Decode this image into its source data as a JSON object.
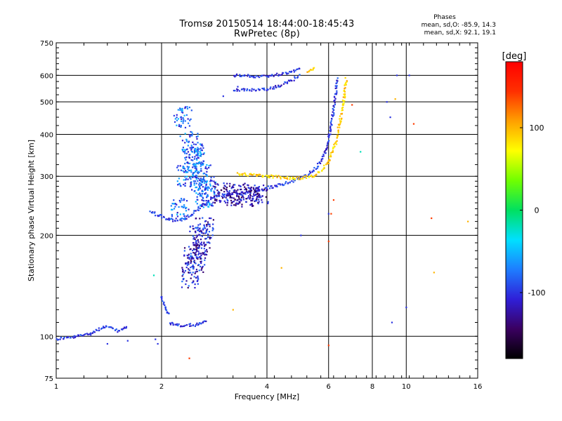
{
  "header": {
    "title_line1": "Tromsø 20150514 18:44:00-18:45:43",
    "title_line2": "RwPretec (8p)"
  },
  "phases": {
    "heading": "Phases",
    "o_stats": "mean, sd,O: -85.9, 14.3",
    "x_stats": "mean, sd,X: 92.1, 19.1"
  },
  "chart_data": {
    "type": "scatter",
    "title": "Tromsø 20150514 18:44:00-18:45:43",
    "subtitle": "RwPretec (8p)",
    "xlabel": "Frequency [MHz]",
    "ylabel": "Stationary phase Virtual Height [km]",
    "x_scale": "log",
    "y_scale": "log",
    "xlim": [
      1,
      16
    ],
    "ylim": [
      75,
      750
    ],
    "x_ticks": [
      1,
      2,
      4,
      6,
      8,
      10,
      16
    ],
    "y_ticks": [
      75,
      100,
      200,
      300,
      400,
      500,
      600,
      750
    ],
    "grid": true,
    "colorbar": {
      "label": "[deg]",
      "range": [
        -180,
        180
      ],
      "ticks": [
        100,
        0,
        -100
      ],
      "colors": [
        "#000000",
        "#3a0060",
        "#2f1fd8",
        "#1e7dff",
        "#00e0ff",
        "#00e060",
        "#70ff00",
        "#ffff00",
        "#ffa000",
        "#ff3000",
        "#ff0000"
      ]
    },
    "series": [
      {
        "mode": "curve",
        "phase": -100,
        "points": [
          [
            1.0,
            98
          ],
          [
            1.05,
            99
          ],
          [
            1.1,
            99
          ],
          [
            1.15,
            100
          ],
          [
            1.2,
            101
          ],
          [
            1.25,
            102
          ],
          [
            1.3,
            104
          ],
          [
            1.35,
            106
          ],
          [
            1.4,
            107
          ],
          [
            1.45,
            105
          ],
          [
            1.5,
            104
          ],
          [
            1.55,
            105
          ],
          [
            1.6,
            107
          ]
        ]
      },
      {
        "mode": "curve",
        "phase": -100,
        "points": [
          [
            1.85,
            235
          ],
          [
            1.95,
            230
          ],
          [
            2.05,
            225
          ],
          [
            2.15,
            222
          ],
          [
            2.25,
            222
          ],
          [
            2.35,
            225
          ],
          [
            2.45,
            232
          ],
          [
            2.55,
            240
          ],
          [
            2.7,
            252
          ],
          [
            2.9,
            262
          ],
          [
            3.1,
            266
          ],
          [
            3.4,
            268
          ],
          [
            3.8,
            272
          ],
          [
            4.2,
            280
          ],
          [
            4.7,
            290
          ],
          [
            5.1,
            298
          ]
        ]
      },
      {
        "mode": "curve",
        "phase": -100,
        "points": [
          [
            5.1,
            300
          ],
          [
            5.4,
            310
          ],
          [
            5.7,
            330
          ],
          [
            5.9,
            360
          ],
          [
            6.05,
            400
          ],
          [
            6.15,
            450
          ],
          [
            6.25,
            500
          ],
          [
            6.3,
            550
          ],
          [
            6.35,
            590
          ]
        ]
      },
      {
        "mode": "curve",
        "phase": -100,
        "points": [
          [
            3.2,
            600
          ],
          [
            3.5,
            597
          ],
          [
            3.8,
            596
          ],
          [
            4.1,
            598
          ],
          [
            4.4,
            606
          ],
          [
            4.7,
            616
          ],
          [
            5.0,
            630
          ]
        ]
      },
      {
        "mode": "curve",
        "phase": -100,
        "points": [
          [
            3.2,
            545
          ],
          [
            3.5,
            542
          ],
          [
            3.8,
            542
          ],
          [
            4.1,
            548
          ],
          [
            4.4,
            560
          ],
          [
            4.7,
            580
          ],
          [
            5.0,
            602
          ]
        ]
      },
      {
        "mode": "curve",
        "phase": -100,
        "points": [
          [
            2.1,
            110
          ],
          [
            2.2,
            108
          ],
          [
            2.3,
            108
          ],
          [
            2.4,
            108
          ],
          [
            2.5,
            108
          ],
          [
            2.6,
            110
          ],
          [
            2.7,
            112
          ]
        ]
      },
      {
        "mode": "curve",
        "phase": -95,
        "points": [
          [
            2.0,
            132
          ],
          [
            2.03,
            125
          ],
          [
            2.06,
            120
          ],
          [
            2.09,
            117
          ],
          [
            2.12,
            116
          ]
        ]
      },
      {
        "mode": "curve",
        "phase": 90,
        "points": [
          [
            3.3,
            305
          ],
          [
            3.6,
            303
          ],
          [
            3.9,
            301
          ],
          [
            4.2,
            299
          ],
          [
            4.5,
            297
          ],
          [
            4.8,
            296
          ],
          [
            5.1,
            297
          ],
          [
            5.4,
            300
          ],
          [
            5.7,
            312
          ],
          [
            6.0,
            330
          ],
          [
            6.3,
            380
          ],
          [
            6.5,
            450
          ],
          [
            6.65,
            520
          ],
          [
            6.75,
            590
          ]
        ]
      },
      {
        "mode": "curve",
        "phase": 95,
        "points": [
          [
            5.2,
            615
          ],
          [
            5.35,
            625
          ],
          [
            5.5,
            636
          ]
        ]
      },
      {
        "mode": "cluster",
        "phase": -80,
        "points": [
          [
            2.25,
            240
          ],
          [
            2.35,
            300
          ],
          [
            2.45,
            330
          ],
          [
            2.55,
            290
          ],
          [
            2.65,
            260
          ],
          [
            2.4,
            380
          ],
          [
            2.3,
            450
          ],
          [
            2.5,
            350
          ],
          [
            2.6,
            310
          ],
          [
            2.7,
            280
          ]
        ]
      },
      {
        "mode": "cluster",
        "phase": -110,
        "points": [
          [
            2.4,
            150
          ],
          [
            2.45,
            175
          ],
          [
            2.55,
            200
          ],
          [
            2.6,
            180
          ],
          [
            2.65,
            210
          ],
          [
            2.5,
            165
          ]
        ]
      },
      {
        "mode": "cluster",
        "phase": -120,
        "points": [
          [
            3.0,
            268
          ],
          [
            3.2,
            262
          ],
          [
            3.4,
            266
          ],
          [
            3.6,
            260
          ],
          [
            3.8,
            266
          ]
        ]
      },
      {
        "mode": "scatter",
        "phase": -100,
        "points": [
          [
            1.4,
            95
          ],
          [
            1.6,
            97
          ],
          [
            1.92,
            98
          ],
          [
            1.95,
            95
          ],
          [
            3.0,
            520
          ],
          [
            3.3,
            555
          ],
          [
            5.0,
            200
          ],
          [
            6.0,
            232
          ],
          [
            8.8,
            500
          ],
          [
            9.0,
            450
          ],
          [
            9.1,
            110
          ],
          [
            9.4,
            600
          ],
          [
            10.0,
            122
          ],
          [
            10.2,
            600
          ]
        ]
      },
      {
        "mode": "scatter",
        "phase": 140,
        "points": [
          [
            2.4,
            86
          ],
          [
            6.0,
            94
          ],
          [
            6.0,
            192
          ],
          [
            6.1,
            232
          ],
          [
            6.2,
            255
          ],
          [
            7.0,
            490
          ],
          [
            10.5,
            430
          ],
          [
            11.8,
            225
          ]
        ]
      },
      {
        "mode": "scatter",
        "phase": 100,
        "points": [
          [
            3.2,
            120
          ],
          [
            4.4,
            160
          ],
          [
            12.0,
            155
          ],
          [
            15.0,
            220
          ],
          [
            9.3,
            510
          ]
        ]
      },
      {
        "mode": "scatter",
        "phase": -20,
        "points": [
          [
            7.4,
            355
          ],
          [
            1.9,
            152
          ]
        ]
      }
    ]
  }
}
